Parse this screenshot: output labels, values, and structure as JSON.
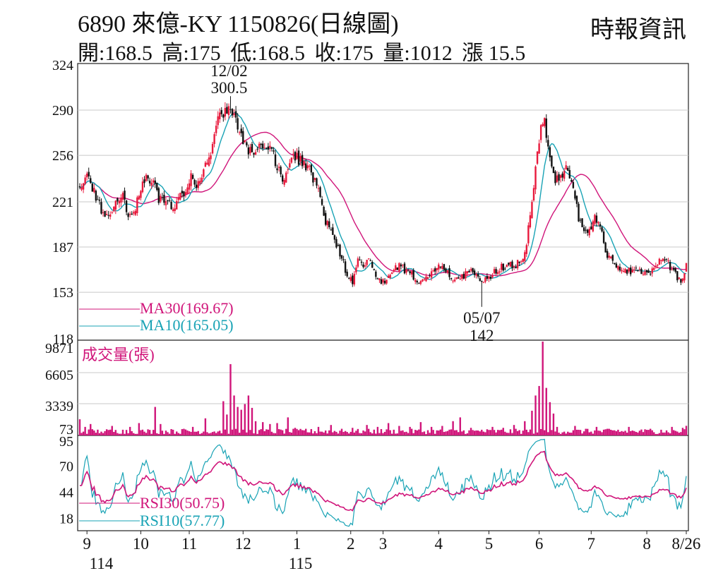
{
  "header": {
    "title": "6890  來億-KY 1150826(日線圖)",
    "source": "時報資訊",
    "ohlc": [
      "開:168.5",
      "高:175",
      "低:168.5",
      "收:175",
      "量:1012",
      "漲 15.5"
    ]
  },
  "colors": {
    "up": "#e8193c",
    "down": "#111111",
    "ma30": "#d0157a",
    "ma10": "#19a3b5",
    "volume": "#d0157a",
    "grid": "#c8c8c8"
  },
  "chart_data": [
    {
      "type": "candlestick",
      "panel": "price",
      "yticks": [
        324,
        290,
        256,
        221,
        187,
        153,
        118
      ],
      "ylim": [
        118,
        324
      ],
      "annotations": [
        {
          "label_date": "12/02",
          "label_value": "300.5",
          "day": 84,
          "value": 300.5
        },
        {
          "label_date": "05/07",
          "label_value": "142",
          "day": 224,
          "value": 142
        }
      ],
      "legend": [
        {
          "name": "MA30(169.67)",
          "color": "#d0157a"
        },
        {
          "name": "MA10(165.05)",
          "color": "#19a3b5"
        }
      ],
      "close_anchors": [
        [
          0,
          232
        ],
        [
          4,
          243
        ],
        [
          8,
          228
        ],
        [
          12,
          215
        ],
        [
          15,
          210
        ],
        [
          20,
          220
        ],
        [
          24,
          224
        ],
        [
          27,
          212
        ],
        [
          31,
          218
        ],
        [
          35,
          235
        ],
        [
          38,
          239
        ],
        [
          41,
          234
        ],
        [
          44,
          224
        ],
        [
          48,
          221
        ],
        [
          52,
          217
        ],
        [
          56,
          224
        ],
        [
          59,
          227
        ],
        [
          62,
          239
        ],
        [
          65,
          232
        ],
        [
          68,
          243
        ],
        [
          70,
          250
        ],
        [
          73,
          259
        ],
        [
          76,
          280
        ],
        [
          79,
          286
        ],
        [
          84,
          291
        ],
        [
          87,
          284
        ],
        [
          90,
          270
        ],
        [
          94,
          258
        ],
        [
          98,
          259
        ],
        [
          102,
          264
        ],
        [
          106,
          260
        ],
        [
          110,
          249
        ],
        [
          113,
          234
        ],
        [
          116,
          245
        ],
        [
          119,
          258
        ],
        [
          122,
          253
        ],
        [
          125,
          248
        ],
        [
          128,
          244
        ],
        [
          131,
          236
        ],
        [
          134,
          223
        ],
        [
          137,
          207
        ],
        [
          140,
          198
        ],
        [
          143,
          188
        ],
        [
          146,
          180
        ],
        [
          149,
          165
        ],
        [
          152,
          160
        ],
        [
          155,
          176
        ],
        [
          158,
          172
        ],
        [
          161,
          180
        ],
        [
          164,
          168
        ],
        [
          167,
          161
        ],
        [
          170,
          160
        ],
        [
          173,
          165
        ],
        [
          176,
          173
        ],
        [
          179,
          172
        ],
        [
          182,
          168
        ],
        [
          185,
          166
        ],
        [
          188,
          162
        ],
        [
          191,
          163
        ],
        [
          194,
          164
        ],
        [
          197,
          167
        ],
        [
          200,
          175
        ],
        [
          203,
          172
        ],
        [
          206,
          166
        ],
        [
          209,
          163
        ],
        [
          212,
          165
        ],
        [
          215,
          166
        ],
        [
          218,
          168
        ],
        [
          221,
          165
        ],
        [
          224,
          163
        ],
        [
          227,
          164
        ],
        [
          230,
          167
        ],
        [
          233,
          170
        ],
        [
          236,
          172
        ],
        [
          239,
          174
        ],
        [
          242,
          173
        ],
        [
          245,
          175
        ],
        [
          248,
          180
        ],
        [
          251,
          210
        ],
        [
          253,
          235
        ],
        [
          255,
          260
        ],
        [
          257,
          275
        ],
        [
          259,
          280
        ],
        [
          261,
          260
        ],
        [
          263,
          245
        ],
        [
          265,
          238
        ],
        [
          267,
          236
        ],
        [
          269,
          238
        ],
        [
          272,
          248
        ],
        [
          275,
          232
        ],
        [
          278,
          208
        ],
        [
          281,
          196
        ],
        [
          284,
          200
        ],
        [
          287,
          210
        ],
        [
          290,
          206
        ],
        [
          293,
          184
        ],
        [
          296,
          178
        ],
        [
          299,
          172
        ],
        [
          302,
          170
        ],
        [
          305,
          168
        ],
        [
          308,
          170
        ],
        [
          311,
          172
        ],
        [
          314,
          168
        ],
        [
          317,
          166
        ],
        [
          320,
          170
        ],
        [
          323,
          176
        ],
        [
          326,
          178
        ],
        [
          329,
          172
        ],
        [
          332,
          166
        ],
        [
          334,
          162
        ],
        [
          336,
          163
        ],
        [
          338,
          175
        ]
      ]
    },
    {
      "type": "bar",
      "panel": "volume",
      "label": "成交量(張)",
      "yticks": [
        9871,
        6605,
        3339,
        73
      ],
      "ylim": [
        0,
        9871
      ],
      "spikes": [
        [
          0,
          1700
        ],
        [
          3,
          900
        ],
        [
          6,
          1200
        ],
        [
          12,
          400
        ],
        [
          18,
          1000
        ],
        [
          24,
          600
        ],
        [
          28,
          900
        ],
        [
          33,
          1300
        ],
        [
          36,
          400
        ],
        [
          42,
          3000
        ],
        [
          45,
          1200
        ],
        [
          52,
          600
        ],
        [
          58,
          700
        ],
        [
          63,
          900
        ],
        [
          70,
          1800
        ],
        [
          80,
          3600
        ],
        [
          82,
          2200
        ],
        [
          84,
          7500
        ],
        [
          86,
          4200
        ],
        [
          88,
          3000
        ],
        [
          90,
          2700
        ],
        [
          92,
          3300
        ],
        [
          94,
          4200
        ],
        [
          96,
          2900
        ],
        [
          98,
          1500
        ],
        [
          102,
          1400
        ],
        [
          106,
          1200
        ],
        [
          110,
          1300
        ],
        [
          116,
          1900
        ],
        [
          120,
          800
        ],
        [
          126,
          700
        ],
        [
          133,
          900
        ],
        [
          140,
          1100
        ],
        [
          146,
          700
        ],
        [
          152,
          800
        ],
        [
          160,
          1100
        ],
        [
          166,
          900
        ],
        [
          172,
          1300
        ],
        [
          178,
          1000
        ],
        [
          184,
          900
        ],
        [
          190,
          1400
        ],
        [
          196,
          900
        ],
        [
          202,
          1000
        ],
        [
          208,
          1500
        ],
        [
          212,
          1900
        ],
        [
          218,
          800
        ],
        [
          224,
          600
        ],
        [
          230,
          900
        ],
        [
          236,
          800
        ],
        [
          242,
          1100
        ],
        [
          248,
          1500
        ],
        [
          252,
          2600
        ],
        [
          254,
          4200
        ],
        [
          256,
          5200
        ],
        [
          258,
          9871
        ],
        [
          260,
          5000
        ],
        [
          262,
          3500
        ],
        [
          264,
          2300
        ],
        [
          266,
          900
        ],
        [
          270,
          400
        ],
        [
          276,
          1000
        ],
        [
          282,
          700
        ],
        [
          288,
          900
        ],
        [
          294,
          700
        ],
        [
          300,
          600
        ],
        [
          306,
          900
        ],
        [
          312,
          500
        ],
        [
          318,
          700
        ],
        [
          324,
          600
        ],
        [
          330,
          900
        ],
        [
          336,
          800
        ],
        [
          338,
          1012
        ]
      ]
    },
    {
      "type": "line",
      "panel": "rsi",
      "yticks": [
        95,
        70,
        44,
        18
      ],
      "ylim": [
        5,
        100
      ],
      "legend": [
        {
          "name": "RSI30(50.75)",
          "color": "#d0157a"
        },
        {
          "name": "RSI10(57.77)",
          "color": "#19a3b5"
        }
      ]
    }
  ],
  "x_axis": {
    "month_labels": [
      {
        "label": "9",
        "day": 4
      },
      {
        "label": "10",
        "day": 34
      },
      {
        "label": "11",
        "day": 61
      },
      {
        "label": "12",
        "day": 91
      },
      {
        "label": "1",
        "day": 121
      },
      {
        "label": "2",
        "day": 151
      },
      {
        "label": "3",
        "day": 169
      },
      {
        "label": "4",
        "day": 200
      },
      {
        "label": "5",
        "day": 228
      },
      {
        "label": "6",
        "day": 256
      },
      {
        "label": "7",
        "day": 285
      },
      {
        "label": "8",
        "day": 316
      },
      {
        "label": "8/26",
        "day": 338
      }
    ],
    "year_labels": [
      {
        "label": "114",
        "day": 12
      },
      {
        "label": "115",
        "day": 123
      }
    ]
  }
}
